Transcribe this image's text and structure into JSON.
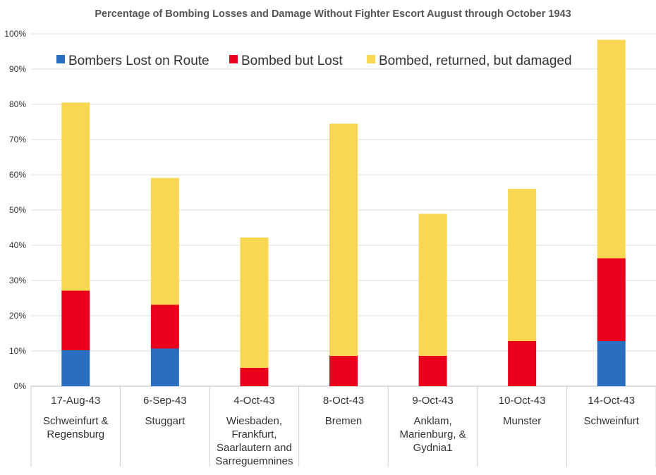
{
  "chart_data": {
    "type": "bar",
    "stacked": true,
    "title": "Percentage of Bombing Losses and Damage Without Fighter Escort August through October 1943",
    "ylim": [
      0,
      100
    ],
    "y_ticks": [
      "0%",
      "10%",
      "20%",
      "30%",
      "40%",
      "50%",
      "60%",
      "70%",
      "80%",
      "90%",
      "100%"
    ],
    "grid": true,
    "legend_position": "top-left inside plot",
    "categories": [
      {
        "date": "17-Aug-43",
        "target": [
          "Schweinfurt  &",
          "Regensburg"
        ]
      },
      {
        "date": "6-Sep-43",
        "target": [
          "Stuggart"
        ]
      },
      {
        "date": "4-Oct-43",
        "target": [
          "Wiesbaden,",
          "Frankfurt,",
          "Saarlautern and",
          "Sarreguemnines"
        ]
      },
      {
        "date": "8-Oct-43",
        "target": [
          "Bremen"
        ]
      },
      {
        "date": "9-Oct-43",
        "target": [
          "Anklam,",
          "Marienburg, &",
          "Gydnia1"
        ]
      },
      {
        "date": "10-Oct-43",
        "target": [
          "Munster"
        ]
      },
      {
        "date": "14-Oct-43",
        "target": [
          "Schweinfurt"
        ]
      }
    ],
    "series": [
      {
        "name": "Bombers Lost on Route",
        "color": "#2a6ebf",
        "values": [
          10.2,
          10.7,
          0,
          0,
          0,
          0,
          12.8
        ]
      },
      {
        "name": "Bombed but Lost",
        "color": "#e8001c",
        "values": [
          16.9,
          12.4,
          5.2,
          8.6,
          8.6,
          12.8,
          23.5
        ]
      },
      {
        "name": "Bombed, returned, but damaged",
        "color": "#f9d752",
        "values": [
          53.4,
          36.0,
          37.0,
          65.9,
          40.3,
          43.2,
          62.0
        ]
      }
    ]
  }
}
